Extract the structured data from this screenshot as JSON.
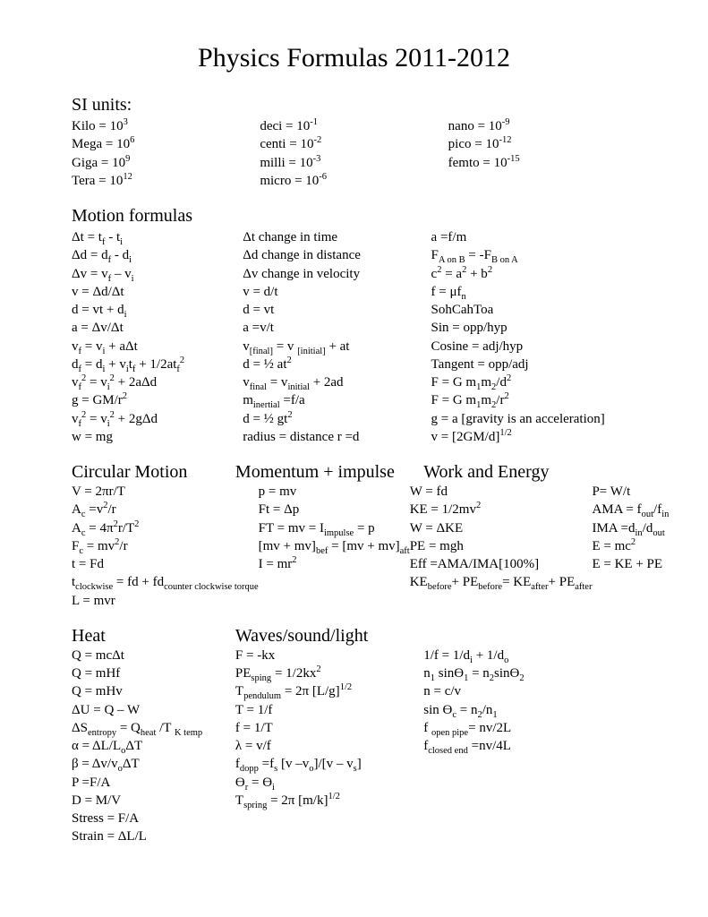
{
  "title": "Physics Formulas 2011-2012",
  "sections": {
    "si": {
      "heading": "SI units:",
      "col1": [
        "Kilo  =   10<sup>3</sup>",
        "Mega  = 10<sup>6</sup>",
        "Giga  = 10<sup>9</sup>",
        "Tera  =  10<sup>12</sup>"
      ],
      "col2": [
        "deci  =   10<sup>-1</sup>",
        "centi  =  10<sup>-2</sup>",
        "milli =    10<sup>-3</sup>",
        "micro =  10<sup>-6</sup>"
      ],
      "col3": [
        "nano = 10<sup>-9</sup>",
        "pico = 10<sup>-12</sup>",
        "femto  =  10<sup>-15</sup>"
      ]
    },
    "motion": {
      "heading": "Motion formulas",
      "col1": [
        "Δt  =  t<sub>f</sub>  -  t<sub>i</sub>",
        "Δd  =  d<sub>f</sub>  - d<sub>i</sub>",
        "Δv = v<sub>f</sub> – v<sub>i</sub>",
        "v = Δd/Δt",
        "d = vt + d<sub>i</sub>",
        "a = Δv/Δt",
        "v<sub>f</sub> = v<sub>i</sub> + aΔt",
        "d<sub>f</sub> = d<sub>i</sub>  +  v<sub>i</sub>t<sub>f</sub> + 1/2at<sub>f</sub><sup>2</sup>",
        "v<sub>f</sub><sup>2</sup>  =  v<sub>i</sub><sup>2</sup> + 2aΔd",
        "g = GM/r<sup>2</sup>",
        "v<sub>f</sub><sup>2</sup> = v<sub>i</sub><sup>2</sup> + 2gΔd",
        "w = mg"
      ],
      "col2": [
        "Δt   change in time",
        "Δd  change in distance",
        "Δv  change in velocity",
        "  v = d/t",
        "  d = vt",
        "   a =v/t",
        "v<sub>[final]</sub>   = v <sub>[initial]</sub> + at",
        "d = ½ at<sup>2</sup>",
        "v<sub>final</sub> = v<sub>initial</sub> + 2ad",
        "m<sub>inertial</sub> =f/a",
        "d = ½ gt<sup>2</sup>",
        "radius = distance r =d"
      ],
      "col3": [
        "a =f/m",
        "F<sub>A on B</sub> = -F<sub>B on A</sub>",
        "c<sup>2</sup> = a<sup>2</sup> + b<sup>2</sup>",
        "f = μf<sub>n</sub>",
        "SohCahToa",
        "Sin  = opp/hyp",
        "Cosine  = adj/hyp",
        "Tangent = opp/adj",
        "F = G m<sub>1</sub>m<sub>2</sub>/d<sup>2</sup>",
        "F = G m<sub>1</sub>m<sub>2</sub>/r<sup>2</sup>",
        "g = a [gravity is an acceleration]",
        "v = [2GM/d]<sup>1/2</sup>"
      ]
    },
    "circular": {
      "h1": "Circular Motion",
      "h2": "Momentum + impulse",
      "h3": "Work and Energy",
      "col1": [
        "V = 2πr/T",
        "A<sub>c</sub> =v<sup>2</sup>/r",
        "A<sub>c</sub> = 4π<sup>2</sup>r/T<sup>2</sup>",
        "F<sub>c</sub> = mv<sup>2</sup>/r",
        "t = Fd",
        "t<sub>clockwise</sub> = fd + fd<sub>counter clockwise torque</sub>",
        "L = mvr"
      ],
      "col2": [
        "p = mv",
        "Ft = Δp",
        "FT = mv = I<sub>impulse</sub> = p",
        "[mv + mv]<sub>bef</sub> = [mv + mv]<sub>aft</sub>",
        "I = mr<sup>2</sup>"
      ],
      "col3": [
        "W = fd",
        "KE =  1/2mv<sup>2</sup>",
        "W = ΔKE",
        "PE = mgh",
        "Eff =AMA/IMA[100%]",
        "KE<sub>before</sub>+ PE<sub>before</sub>= KE<sub>after</sub>+ PE<sub>after</sub>"
      ],
      "col4": [
        "P= W/t",
        "AMA = f<sub>out</sub>/f<sub>in</sub>",
        "IMA =d<sub>in</sub>/d<sub>out</sub>",
        "E = mc<sup>2</sup>",
        "E = KE + PE"
      ]
    },
    "heat": {
      "h1": "Heat",
      "h2": "Waves/sound/light",
      "col1": [
        "Q = mcΔt",
        "Q = mHf",
        "Q = mHv",
        "ΔU = Q – W",
        "ΔS<sub>entropy</sub> = Q<sub>heat</sub> /T <sub>K  temp</sub>",
        "α = ΔL/L<sub>o</sub>ΔT",
        "β = Δv/v<sub>o</sub>ΔT",
        "P =F/A",
        "D = M/V",
        "Stress = F/A",
        "Strain  = ΔL/L"
      ],
      "col2": [
        "F = -kx",
        "PE<sub>sping</sub> = 1/2kx<sup>2</sup>",
        "T<sub>pendulum</sub> = 2π [L/g]<sup>1/2</sup>",
        "T = 1/f",
        "f = 1/T",
        "λ = v/f",
        "f<sub>dopp</sub> =f<sub>s</sub> [v –v<sub>o</sub>]/[v – v<sub>s</sub>]",
        "Ө<sub>r</sub>  = Ө<sub>i</sub>",
        "T<sub>spring</sub> = 2π [m/k]<sup>1/2</sup>"
      ],
      "col3": [
        "",
        "1/f = 1/d<sub>i</sub> + 1/d<sub>o</sub>",
        "n<sub>1</sub> sinӨ<sub>1</sub> = n<sub>2</sub>sinӨ<sub>2</sub>",
        "n = c/v",
        "sin Ө<sub>c</sub> = n<sub>2</sub>/n<sub>1</sub>",
        "f <sub>open pipe</sub>= nv/2L",
        "f<sub>closed end</sub> =nv/4L"
      ]
    }
  }
}
